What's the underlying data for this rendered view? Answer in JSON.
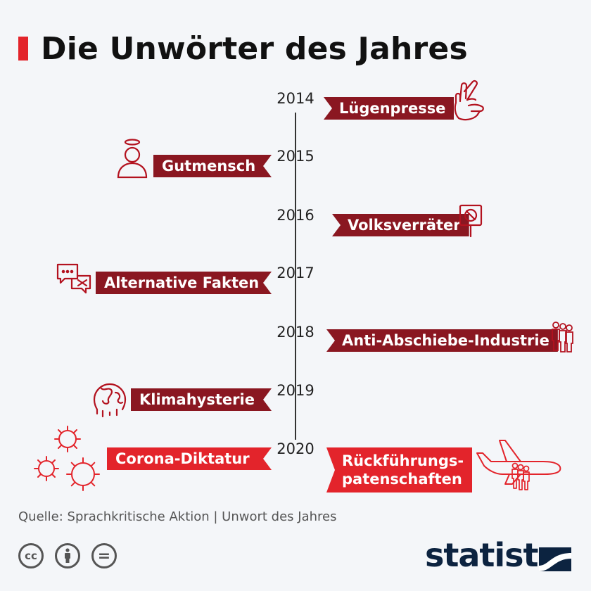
{
  "title": "Die Unwörter des Jahres",
  "entries": [
    {
      "year": "2014",
      "word": "Lügenpresse",
      "icon": "crossed-fingers-icon"
    },
    {
      "year": "2015",
      "word": "Gutmensch",
      "icon": "person-halo-icon"
    },
    {
      "year": "2016",
      "word": "Volksverräter",
      "icon": "protest-sign-icon"
    },
    {
      "year": "2017",
      "word": "Alternative Fakten",
      "icon": "speech-bubbles-icon"
    },
    {
      "year": "2018",
      "word": "Anti-Abschiebe-Industrie",
      "icon": "group-of-people-icon"
    },
    {
      "year": "2019",
      "word": "Klimahysterie",
      "icon": "melting-globe-icon"
    },
    {
      "year": "2020",
      "word": "Corona-Diktatur",
      "word_line1": "Rückführungs-",
      "word_line2": "patenschaften",
      "icon": "virus-icon",
      "icon2": "airplane-people-icon"
    }
  ],
  "source": "Quelle: Sprachkritische Aktion | Unwort des Jahres",
  "license": {
    "cc": "cc",
    "eq": "="
  },
  "brand": "statista",
  "colors": {
    "dark_banner": "#8a1721",
    "red_banner": "#e3242b",
    "icon_stroke": "#b3121f"
  }
}
